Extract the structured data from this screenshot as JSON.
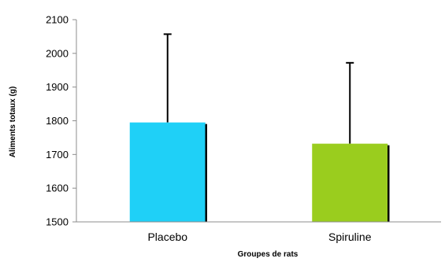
{
  "chart_data": {
    "type": "bar",
    "categories": [
      "Placebo",
      "Spiruline"
    ],
    "values": [
      1795,
      1732
    ],
    "error_plus": [
      262,
      240
    ],
    "colors": [
      "#1fd0f7",
      "#9acd1e"
    ],
    "xlabel": "Groupes de rats",
    "ylabel": "Aliments totaux (g)",
    "ylim": [
      1500,
      2100
    ],
    "yticks": [
      1500,
      1600,
      1700,
      1800,
      1900,
      2000,
      2100
    ],
    "grid": false
  }
}
